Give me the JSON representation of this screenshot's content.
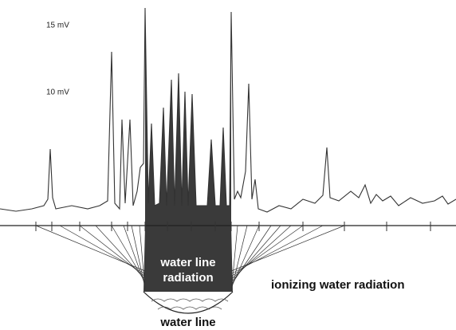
{
  "labels": {
    "scale_high": "15 mV",
    "scale_mid": "10 mV"
  },
  "region_label": [
    "water line",
    "radiation"
  ],
  "bowl_label": "water line",
  "side_label": "ionizing water radiation"
}
